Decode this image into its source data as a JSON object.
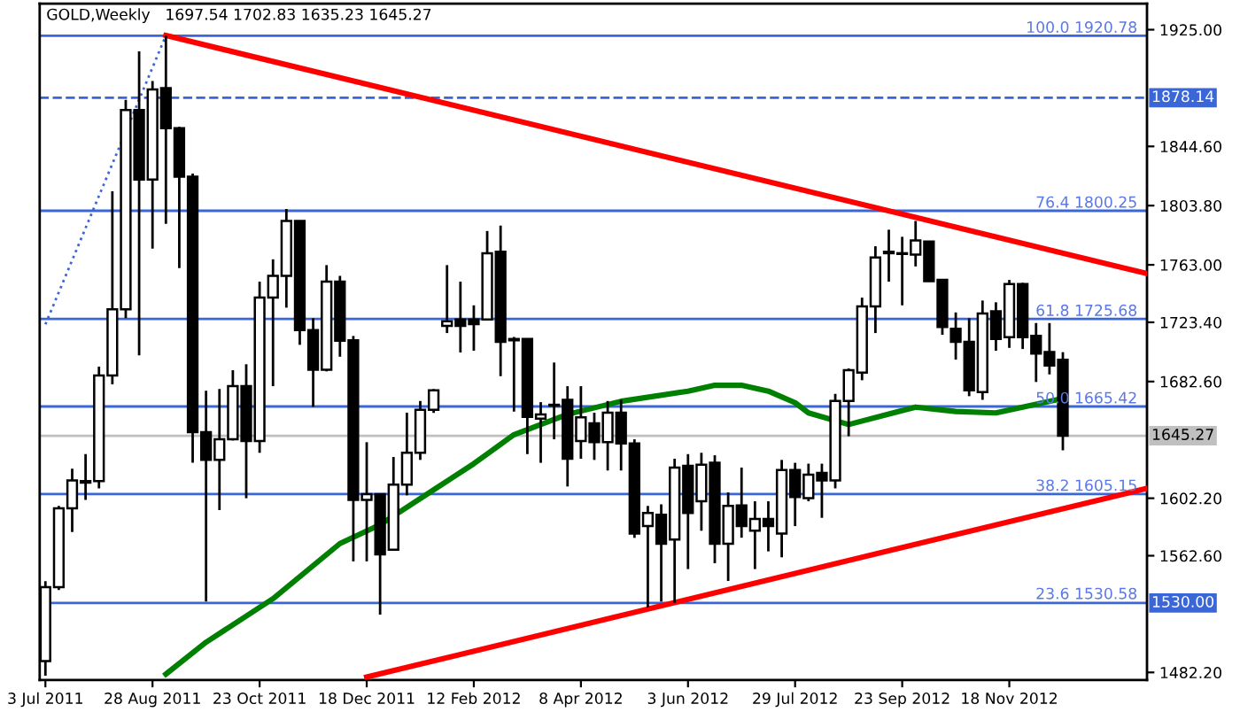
{
  "chart_data": {
    "type": "candlestick",
    "title": "GOLD,Weekly",
    "subtitle": "1697.54 1702.83 1635.23 1645.27",
    "color": "#000000",
    "x": [
      "2011-07-03",
      "2011-07-10",
      "2011-07-17",
      "2011-07-24",
      "2011-07-31",
      "2011-08-07",
      "2011-08-14",
      "2011-08-21",
      "2011-08-28",
      "2011-09-04",
      "2011-09-11",
      "2011-09-18",
      "2011-09-25",
      "2011-10-02",
      "2011-10-09",
      "2011-10-16",
      "2011-10-23",
      "2011-10-30",
      "2011-11-06",
      "2011-11-13",
      "2011-11-20",
      "2011-11-27",
      "2011-12-04",
      "2011-12-11",
      "2011-12-18",
      "2011-12-25",
      "2012-01-01",
      "2012-01-08",
      "2012-01-15",
      "2012-01-22",
      "2012-01-29",
      "2012-02-05",
      "2012-02-12",
      "2012-02-19",
      "2012-02-26",
      "2012-03-04",
      "2012-03-11",
      "2012-03-18",
      "2012-03-25",
      "2012-04-01",
      "2012-04-08",
      "2012-04-15",
      "2012-04-22",
      "2012-04-29",
      "2012-05-06",
      "2012-05-13",
      "2012-05-20",
      "2012-05-27",
      "2012-06-03",
      "2012-06-10",
      "2012-06-17",
      "2012-06-24",
      "2012-07-01",
      "2012-07-08",
      "2012-07-15",
      "2012-07-22",
      "2012-07-29",
      "2012-08-05",
      "2012-08-12",
      "2012-08-19",
      "2012-08-26",
      "2012-09-02",
      "2012-09-09",
      "2012-09-16",
      "2012-09-23",
      "2012-09-30",
      "2012-10-07",
      "2012-10-14",
      "2012-10-21",
      "2012-10-28",
      "2012-11-04",
      "2012-11-11",
      "2012-11-18",
      "2012-11-25",
      "2012-12-02",
      "2012-12-09",
      "2012-12-16"
    ],
    "ohlc": [
      [
        1490,
        1545,
        1480,
        1541
      ],
      [
        1541,
        1597,
        1539,
        1595.3
      ],
      [
        1595.3,
        1622.5,
        1579,
        1614.4
      ],
      [
        1613,
        1632.6,
        1601,
        1614
      ],
      [
        1614,
        1692.8,
        1609,
        1686.7
      ],
      [
        1686.7,
        1813.6,
        1680.6,
        1732.3
      ],
      [
        1732.3,
        1876.6,
        1726.2,
        1869.7
      ],
      [
        1869.7,
        1910,
        1700.6,
        1821.7
      ],
      [
        1821.7,
        1889.6,
        1774.2,
        1883.9
      ],
      [
        1884.7,
        1920.78,
        1791.2,
        1857.1
      ],
      [
        1857.1,
        1858,
        1760.7,
        1823.8
      ],
      [
        1823.8,
        1825.8,
        1626.6,
        1647.7
      ],
      [
        1647.7,
        1676.2,
        1531,
        1628.6
      ],
      [
        1628.6,
        1677.4,
        1594,
        1642.8
      ],
      [
        1642.8,
        1690.4,
        1642,
        1679.4
      ],
      [
        1679.4,
        1694.5,
        1602.2,
        1641.6
      ],
      [
        1641.6,
        1751.4,
        1633.5,
        1740.4
      ],
      [
        1740.4,
        1766.8,
        1679.4,
        1755.4
      ],
      [
        1755.4,
        1801.4,
        1733.5,
        1793.3
      ],
      [
        1793.3,
        1793.3,
        1707.9,
        1718
      ],
      [
        1718,
        1726.2,
        1665.2,
        1690.8
      ],
      [
        1690.8,
        1762.8,
        1689.6,
        1751.4
      ],
      [
        1751.4,
        1755.4,
        1699.7,
        1710.7
      ],
      [
        1711,
        1714,
        1558.7,
        1601
      ],
      [
        1601,
        1640.8,
        1558.7,
        1605
      ],
      [
        1605,
        1605,
        1522,
        1563.5
      ],
      [
        1566.8,
        1630.6,
        1566.8,
        1611.5
      ],
      [
        1611.5,
        1661.1,
        1604.2,
        1633.5
      ],
      [
        1633.5,
        1669.2,
        1628.6,
        1663.2
      ],
      [
        1663.2,
        1677.4,
        1661,
        1676.6
      ],
      [
        1720.9,
        1762.8,
        1716,
        1724.1
      ],
      [
        1725.3,
        1751.4,
        1702.6,
        1720.9
      ],
      [
        1725.3,
        1735.1,
        1703.8,
        1722.1
      ],
      [
        1725.3,
        1786.3,
        1725,
        1770.9
      ],
      [
        1772,
        1790,
        1686.3,
        1709.9
      ],
      [
        1711.9,
        1713.3,
        1661.9,
        1711
      ],
      [
        1712,
        1712,
        1632.6,
        1658.3
      ],
      [
        1657.1,
        1668.4,
        1626.6,
        1659.9
      ],
      [
        1666,
        1695.7,
        1642.8,
        1666.6
      ],
      [
        1670,
        1679.4,
        1610.3,
        1629.4
      ],
      [
        1641.6,
        1679.4,
        1629.4,
        1657.9
      ],
      [
        1653.8,
        1661.1,
        1628.6,
        1640.8
      ],
      [
        1640.8,
        1669.2,
        1621.3,
        1661.1
      ],
      [
        1661.1,
        1670,
        1621.3,
        1640
      ],
      [
        1640,
        1642.8,
        1574.9,
        1577.8
      ],
      [
        1583,
        1596.9,
        1527,
        1592
      ],
      [
        1590.8,
        1598,
        1531,
        1570.8
      ],
      [
        1573.7,
        1629.4,
        1530.2,
        1623.3
      ],
      [
        1624.5,
        1632.6,
        1553.4,
        1592
      ],
      [
        1600.1,
        1633.5,
        1579.8,
        1625.3
      ],
      [
        1626.6,
        1631.8,
        1557.4,
        1570.8
      ],
      [
        1570.8,
        1606.2,
        1545.2,
        1596.9
      ],
      [
        1597.3,
        1623.3,
        1575,
        1583
      ],
      [
        1579.8,
        1600.1,
        1553.4,
        1587.9
      ],
      [
        1587.9,
        1600.1,
        1565.6,
        1583
      ],
      [
        1577.8,
        1628.6,
        1561.5,
        1621.7
      ],
      [
        1621.7,
        1626.6,
        1583,
        1603
      ],
      [
        1602.2,
        1626,
        1600.1,
        1618.4
      ],
      [
        1619.7,
        1626,
        1588.7,
        1614.4
      ],
      [
        1614.4,
        1674.1,
        1609,
        1669.2
      ],
      [
        1669.2,
        1691.6,
        1644.9,
        1690.4
      ],
      [
        1688.8,
        1740.4,
        1683.5,
        1734.3
      ],
      [
        1734.3,
        1775.8,
        1716,
        1768
      ],
      [
        1771,
        1787.2,
        1751.4,
        1772
      ],
      [
        1770.5,
        1782.3,
        1735.1,
        1771
      ],
      [
        1770.1,
        1793.3,
        1761.9,
        1779.8
      ],
      [
        1779,
        1779,
        1751.4,
        1751.8
      ],
      [
        1752.6,
        1752.6,
        1714.8,
        1720.1
      ],
      [
        1718.9,
        1730.2,
        1697.7,
        1709.9
      ],
      [
        1709.9,
        1726.2,
        1672.5,
        1676.6
      ],
      [
        1675.4,
        1738.4,
        1670,
        1729.4
      ],
      [
        1731,
        1737.2,
        1703.8,
        1711.9
      ],
      [
        1713.2,
        1752.6,
        1705.8,
        1749.8
      ],
      [
        1749.8,
        1750.6,
        1705,
        1713.2
      ],
      [
        1714,
        1722.9,
        1682.3,
        1701.8
      ],
      [
        1703,
        1722.9,
        1687.5,
        1693.6
      ],
      [
        1697.54,
        1702.83,
        1635.23,
        1645.27
      ]
    ],
    "series": [
      {
        "type": "line",
        "color": "#008000",
        "x": [
          "2011-09-04",
          "2011-09-25",
          "2011-10-30",
          "2011-12-04",
          "2011-12-25",
          "2012-01-22",
          "2012-02-12",
          "2012-03-04",
          "2012-04-01",
          "2012-04-29",
          "2012-06-03",
          "2012-06-17",
          "2012-07-01",
          "2012-07-15",
          "2012-07-29",
          "2012-08-05",
          "2012-08-26",
          "2012-09-30",
          "2012-10-21",
          "2012-11-11",
          "2012-11-25",
          "2012-12-16"
        ],
        "values": [
          1481,
          1503,
          1533,
          1571,
          1584,
          1608,
          1626,
          1646,
          1660,
          1669,
          1676,
          1680,
          1680,
          1676,
          1668,
          1661,
          1653,
          1665,
          1662,
          1661,
          1665,
          1671
        ]
      },
      {
        "type": "line",
        "color": "#ff0000",
        "x": [
          "2011-09-04",
          "2013-01-29"
        ],
        "values": [
          1921,
          1757
        ]
      },
      {
        "type": "line",
        "color": "#ff0000",
        "x": [
          "2011-12-18",
          "2013-01-29"
        ],
        "values": [
          1479,
          1609
        ]
      },
      {
        "type": "line",
        "color": "#3a66d8",
        "line_style": "dotted",
        "x": [
          "2011-07-03",
          "2011-09-04"
        ],
        "values": [
          1722,
          1921
        ]
      }
    ],
    "xlim": [
      "2011-06-30",
      "2013-01-29"
    ],
    "xticks": [
      {
        "value": "2011-07-03",
        "label": "3 Jul 2011"
      },
      {
        "value": "2011-08-28",
        "label": "28 Aug 2011"
      },
      {
        "value": "2011-10-23",
        "label": "23 Oct 2011"
      },
      {
        "value": "2011-12-18",
        "label": "18 Dec 2011"
      },
      {
        "value": "2012-02-12",
        "label": "12 Feb 2012"
      },
      {
        "value": "2012-04-08",
        "label": "8 Apr 2012"
      },
      {
        "value": "2012-06-03",
        "label": "3 Jun 2012"
      },
      {
        "value": "2012-07-29",
        "label": "29 Jul 2012"
      },
      {
        "value": "2012-09-23",
        "label": "23 Sep 2012"
      },
      {
        "value": "2012-11-18",
        "label": "18 Nov 2012"
      }
    ],
    "ylim": [
      1477,
      1943
    ],
    "yticks": [
      {
        "value": 1925,
        "label": "1925.00"
      },
      {
        "value": 1844.6,
        "label": "1844.60"
      },
      {
        "value": 1803.8,
        "label": "1803.80"
      },
      {
        "value": 1763,
        "label": "1763.00"
      },
      {
        "value": 1723.4,
        "label": "1723.40"
      },
      {
        "value": 1682.6,
        "label": "1682.60"
      },
      {
        "value": 1602.2,
        "label": "1602.20"
      },
      {
        "value": 1562.6,
        "label": "1562.60"
      },
      {
        "value": 1482.2,
        "label": "1482.20"
      }
    ],
    "ref_lines": [
      {
        "axis": "y",
        "value": 1920.78,
        "color": "#3a66d8"
      },
      {
        "axis": "y",
        "value": 1878.14,
        "color": "#3a66d8",
        "line_style": "dashed",
        "label": "1878.14"
      },
      {
        "axis": "y",
        "value": 1800.25,
        "color": "#3a66d8"
      },
      {
        "axis": "y",
        "value": 1725.68,
        "color": "#3a66d8"
      },
      {
        "axis": "y",
        "value": 1665.42,
        "color": "#3a66d8"
      },
      {
        "axis": "y",
        "value": 1645.27,
        "color": "#c0c0c0",
        "label": "1645.27"
      },
      {
        "axis": "y",
        "value": 1605.15,
        "color": "#3a66d8"
      },
      {
        "axis": "y",
        "value": 1530.0,
        "color": "#3a66d8",
        "label": "1530.00"
      }
    ],
    "annotations": [
      {
        "text": "100.0 1920.78",
        "x": "2013-01-24",
        "y": 1920.78
      },
      {
        "text": "76.4 1800.25",
        "x": "2013-01-24",
        "y": 1800.25
      },
      {
        "text": "61.8 1725.68",
        "x": "2013-01-24",
        "y": 1725.68
      },
      {
        "text": "50.0 1665.42",
        "x": "2013-01-24",
        "y": 1665.42
      },
      {
        "text": "38.2 1605.15",
        "x": "2013-01-24",
        "y": 1605.15
      },
      {
        "text": "23.6 1530.58",
        "x": "2013-01-24",
        "y": 1530.58
      }
    ],
    "grid": false
  }
}
